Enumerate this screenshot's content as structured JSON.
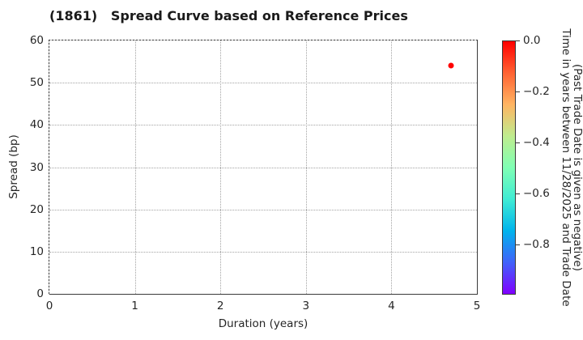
{
  "chart_data": {
    "type": "scatter",
    "title": "(1861)   Spread Curve based on Reference Prices",
    "xlabel": "Duration (years)",
    "ylabel": "Spread (bp)",
    "xlim": [
      0,
      5
    ],
    "ylim": [
      0,
      60
    ],
    "xticks": [
      0,
      1,
      2,
      3,
      4,
      5
    ],
    "yticks": [
      0,
      10,
      20,
      30,
      40,
      50,
      60
    ],
    "grid": true,
    "grid_style": "dotted",
    "legend": "none",
    "points": [
      {
        "x": 4.7,
        "y": 54,
        "color_value": 0.0,
        "color": "#ff0000"
      }
    ],
    "colorbar": {
      "colormap": "rainbow",
      "range_top_to_bottom": [
        0.0,
        -1.0
      ],
      "ticks": [
        {
          "value": 0.0,
          "label": "0.0"
        },
        {
          "value": -0.2,
          "label": "−0.2"
        },
        {
          "value": -0.4,
          "label": "−0.4"
        },
        {
          "value": -0.6,
          "label": "−0.6"
        },
        {
          "value": -0.8,
          "label": "−0.8"
        }
      ],
      "gradient_top_to_bottom": [
        "#ff0000",
        "#ff6232",
        "#ffb462",
        "#bfec8e",
        "#80ffb4",
        "#40ecd4",
        "#00b4ec",
        "#4062fa",
        "#8000ff"
      ],
      "label_line1": "Time in years between 11/28/2025 and Trade Date",
      "label_line2": "(Past Trade Date is given as negative)"
    },
    "colors": {
      "background": "#ffffff",
      "spine": "#3a3a3a",
      "grid": "#a3a3a3",
      "text": "#262626",
      "point": "#ff0000"
    }
  }
}
